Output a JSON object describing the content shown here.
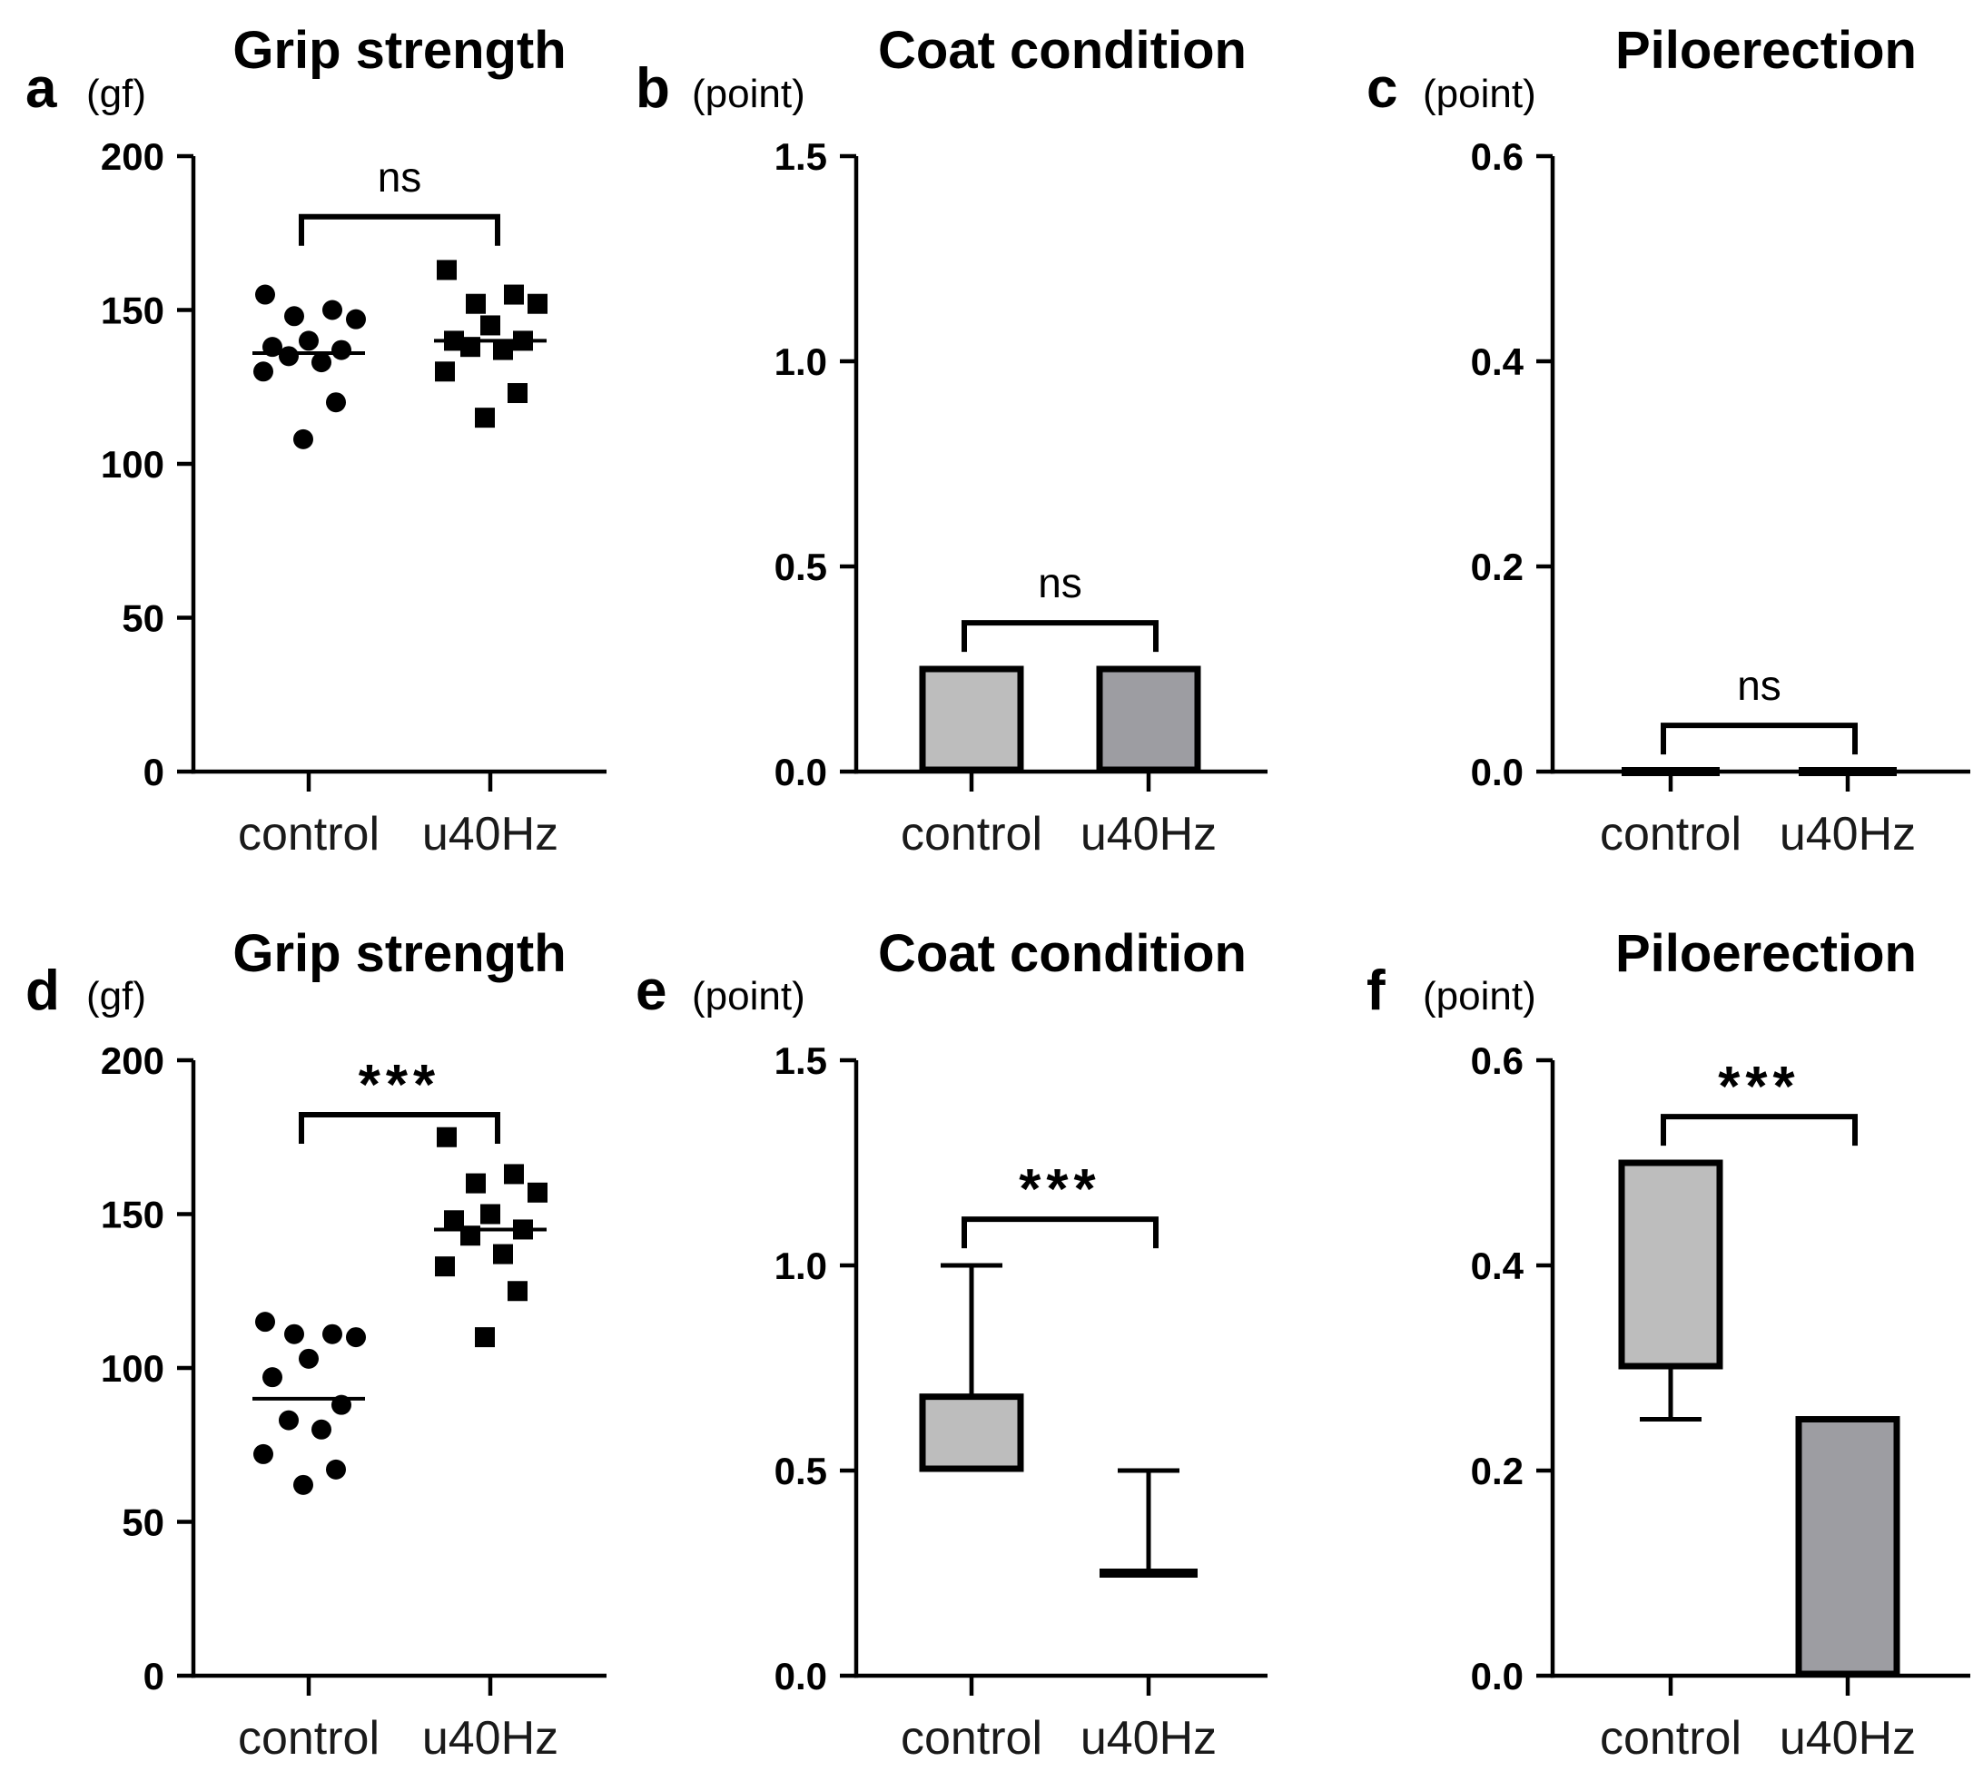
{
  "figure": {
    "group_labels": [
      "control",
      "u40Hz"
    ],
    "colors": {
      "axis": "#000000",
      "control_fill": "#bdbdbd",
      "u40hz_fill": "#9d9da2",
      "background": "#ffffff"
    }
  },
  "chart_data": [
    {
      "id": "a",
      "panel_letter": "a",
      "type": "scatter",
      "title": "Grip strength",
      "ylabel": "(gf)",
      "ylim": [
        0,
        200
      ],
      "yticks": [
        "0",
        "50",
        "100",
        "150",
        "200"
      ],
      "categories": [
        "control",
        "u40Hz"
      ],
      "marker_shapes": [
        "circle",
        "square"
      ],
      "significance": "ns",
      "series": [
        {
          "name": "control",
          "values": [
            155,
            150,
            148,
            147,
            140,
            138,
            137,
            135,
            133,
            130,
            120,
            108
          ],
          "median": 136
        },
        {
          "name": "u40Hz",
          "values": [
            163,
            155,
            152,
            152,
            145,
            140,
            140,
            138,
            137,
            130,
            123,
            115
          ],
          "median": 140
        }
      ]
    },
    {
      "id": "b",
      "panel_letter": "b",
      "type": "bar",
      "title": "Coat condition",
      "ylabel": "(point)",
      "ylim": [
        0,
        1.5
      ],
      "yticks": [
        "0.0",
        "0.5",
        "1.0",
        "1.5"
      ],
      "categories": [
        "control",
        "u40Hz"
      ],
      "significance": "ns",
      "series": [
        {
          "name": "control",
          "box": [
            0,
            0.25
          ]
        },
        {
          "name": "u40Hz",
          "box": [
            0,
            0.25
          ]
        }
      ]
    },
    {
      "id": "c",
      "panel_letter": "c",
      "type": "bar",
      "title": "Piloerection",
      "ylabel": "(point)",
      "ylim": [
        0,
        0.6
      ],
      "yticks": [
        "0.0",
        "0.2",
        "0.4",
        "0.6"
      ],
      "categories": [
        "control",
        "u40Hz"
      ],
      "significance": "ns",
      "series": [
        {
          "name": "control",
          "box": [
            0,
            0
          ]
        },
        {
          "name": "u40Hz",
          "box": [
            0,
            0
          ]
        }
      ]
    },
    {
      "id": "d",
      "panel_letter": "d",
      "type": "scatter",
      "title": "Grip strength",
      "ylabel": "(gf)",
      "ylim": [
        0,
        200
      ],
      "yticks": [
        "0",
        "50",
        "100",
        "150",
        "200"
      ],
      "categories": [
        "control",
        "u40Hz"
      ],
      "marker_shapes": [
        "circle",
        "square"
      ],
      "significance": "***",
      "series": [
        {
          "name": "control",
          "values": [
            115,
            111,
            111,
            110,
            103,
            97,
            88,
            83,
            80,
            72,
            67,
            62
          ],
          "median": 90
        },
        {
          "name": "u40Hz",
          "values": [
            175,
            163,
            160,
            157,
            150,
            148,
            145,
            143,
            137,
            133,
            125,
            110
          ],
          "median": 145
        }
      ]
    },
    {
      "id": "e",
      "panel_letter": "e",
      "type": "bar",
      "title": "Coat condition",
      "ylabel": "(point)",
      "ylim": [
        0,
        1.5
      ],
      "yticks": [
        "0.0",
        "0.5",
        "1.0",
        "1.5"
      ],
      "categories": [
        "control",
        "u40Hz"
      ],
      "significance": "***",
      "series": [
        {
          "name": "control",
          "box": [
            0.5,
            0.68
          ],
          "whisker": [
            0.5,
            1.0
          ]
        },
        {
          "name": "u40Hz",
          "box": [
            0.25,
            0.25
          ],
          "whisker": [
            0.25,
            0.5
          ]
        }
      ]
    },
    {
      "id": "f",
      "panel_letter": "f",
      "type": "bar",
      "title": "Piloerection",
      "ylabel": "(point)",
      "ylim": [
        0,
        0.6
      ],
      "yticks": [
        "0.0",
        "0.2",
        "0.4",
        "0.6"
      ],
      "categories": [
        "control",
        "u40Hz"
      ],
      "significance": "***",
      "series": [
        {
          "name": "control",
          "box": [
            0.3,
            0.5
          ],
          "whisker": [
            0.25,
            0.5
          ]
        },
        {
          "name": "u40Hz",
          "box": [
            0,
            0.25
          ]
        }
      ]
    }
  ]
}
